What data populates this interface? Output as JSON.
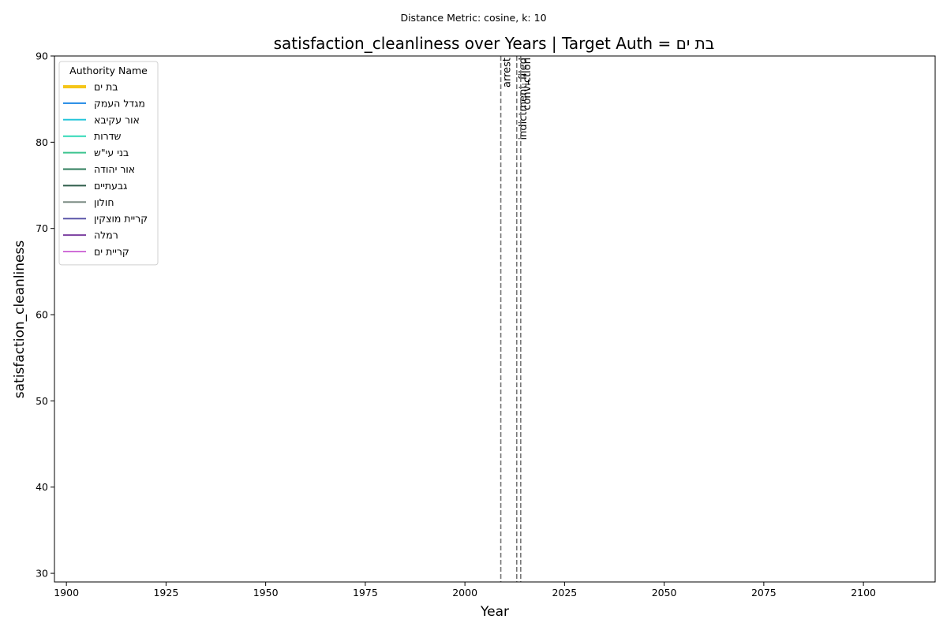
{
  "chart_data": {
    "type": "line",
    "suptitle": "Distance Metric: cosine, k: 10",
    "title": "satisfaction_cleanliness over Years | Target Auth = בת ים",
    "xlabel": "Year",
    "ylabel": "satisfaction_cleanliness",
    "xlim": [
      1897,
      2118
    ],
    "ylim": [
      29,
      90
    ],
    "x_ticks": [
      1900,
      1925,
      1950,
      1975,
      2000,
      2025,
      2050,
      2075,
      2100
    ],
    "y_ticks": [
      30,
      40,
      50,
      60,
      70,
      80,
      90
    ],
    "grid": false,
    "legend": {
      "title": "Authority Name",
      "placement": "top-left",
      "entries": [
        {
          "name": "בת ים",
          "color": "#f5c518",
          "target": true
        },
        {
          "name": "מגדל העמק",
          "color": "#1e88e5",
          "target": false
        },
        {
          "name": "אור עקיבא",
          "color": "#26c6da",
          "target": false
        },
        {
          "name": "שדרות",
          "color": "#2ed8b6",
          "target": false
        },
        {
          "name": "בני עי\"ש",
          "color": "#3cc48f",
          "target": false
        },
        {
          "name": "אור יהודה",
          "color": "#2e7d5b",
          "target": false
        },
        {
          "name": "גבעתיים",
          "color": "#2f5d4a",
          "target": false
        },
        {
          "name": "חולון",
          "color": "#7b8c84",
          "target": false
        },
        {
          "name": "קריית מוצקין",
          "color": "#5a55a8",
          "target": false
        },
        {
          "name": "רמלה",
          "color": "#7b3fa0",
          "target": false
        },
        {
          "name": "קריית ים",
          "color": "#d070d8",
          "target": false
        }
      ]
    },
    "events": [
      {
        "label": "arrest",
        "year": 2009
      },
      {
        "label": "indictment_filed",
        "year": 2013
      },
      {
        "label": "conviction",
        "year": 2014
      }
    ],
    "event_line_color": "#777777"
  }
}
